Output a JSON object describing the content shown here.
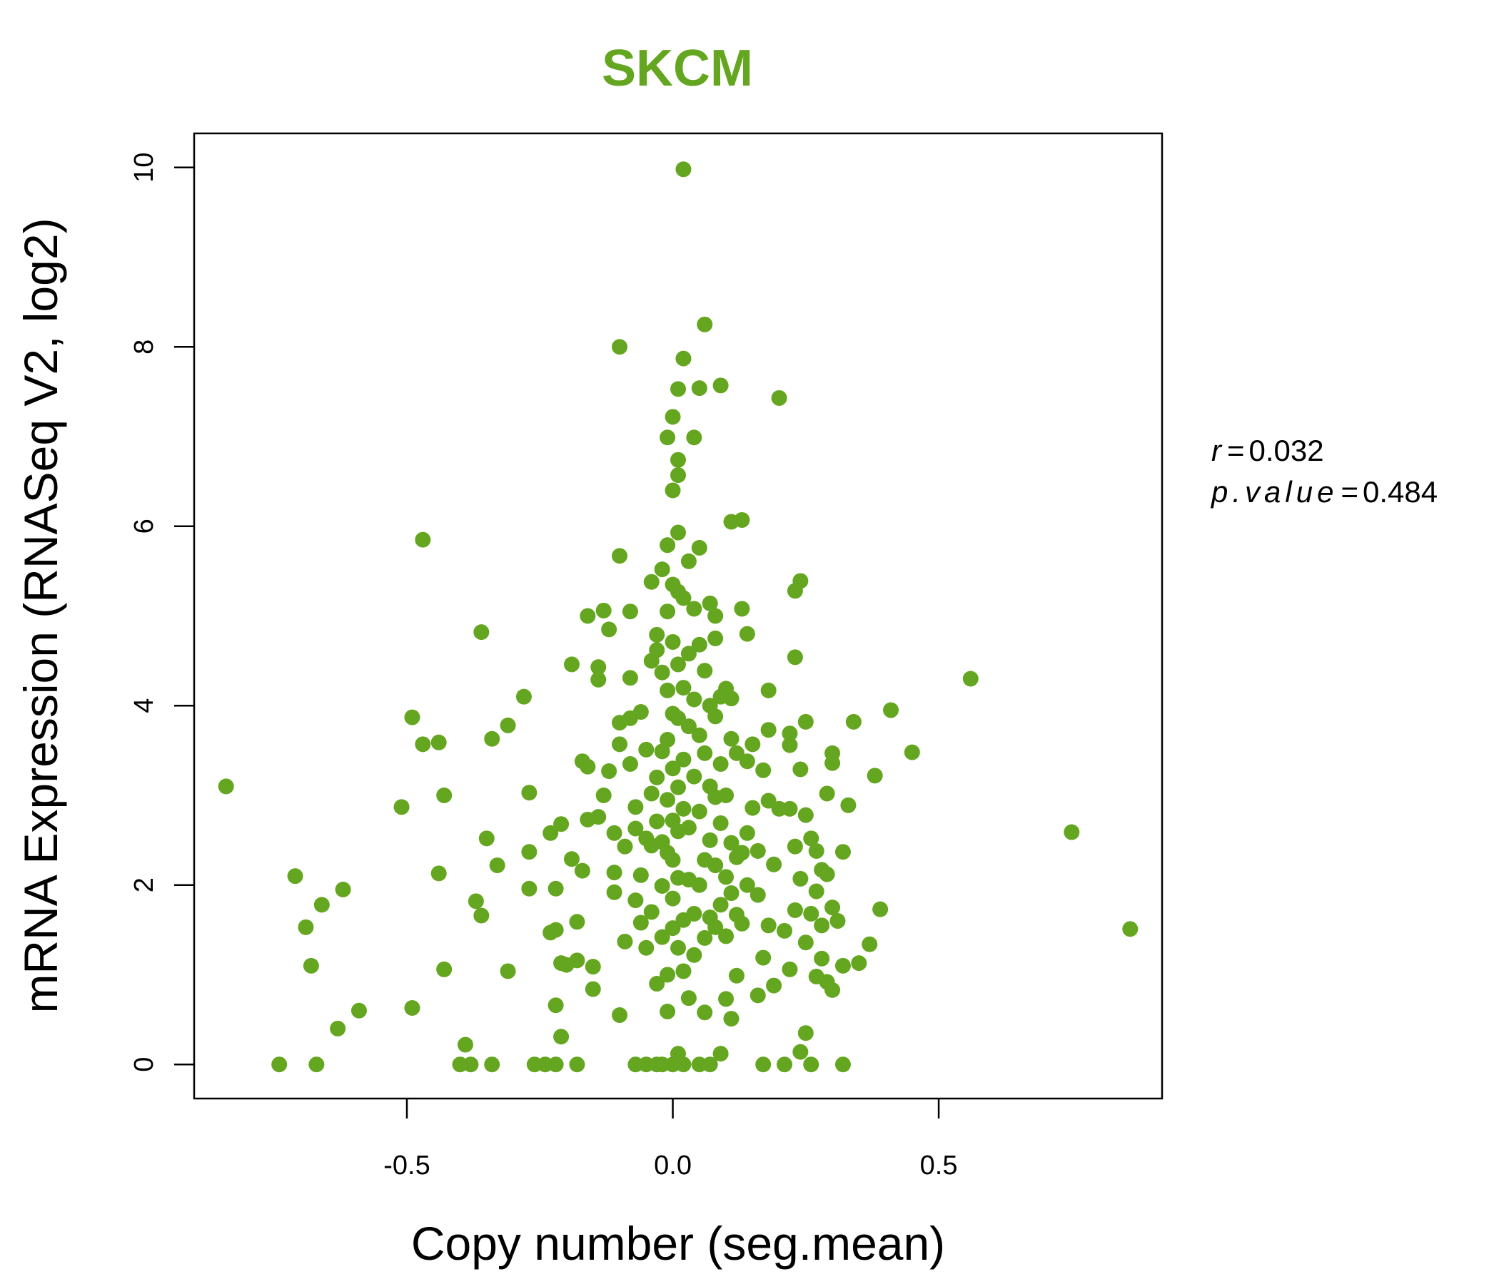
{
  "chart_data": {
    "type": "scatter",
    "title": "SKCM",
    "xlabel": "Copy number (seg.mean)",
    "ylabel": "mRNA Expression (RNASeq V2, log2)",
    "xlim": [
      -0.9,
      0.92
    ],
    "ylim": [
      -0.38,
      10.38
    ],
    "xticks": [
      -0.5,
      0.0,
      0.5
    ],
    "xtick_labels": [
      "-0.5",
      "0.0",
      "0.5"
    ],
    "yticks": [
      0,
      2,
      4,
      6,
      8,
      10
    ],
    "ytick_labels": [
      "0",
      "2",
      "4",
      "6",
      "8",
      "10"
    ],
    "grid": false,
    "legend": "none",
    "point_color": "#64A61F",
    "annotations": {
      "r_label": "r",
      "r_value": "0.032",
      "p_label": "p.value",
      "p_value": "0.484"
    },
    "points": [
      [
        -0.84,
        3.1
      ],
      [
        -0.74,
        0.0
      ],
      [
        -0.71,
        2.1
      ],
      [
        -0.69,
        1.53
      ],
      [
        -0.68,
        1.1
      ],
      [
        -0.67,
        0.0
      ],
      [
        -0.66,
        1.78
      ],
      [
        -0.63,
        0.4
      ],
      [
        -0.62,
        1.95
      ],
      [
        -0.59,
        0.6
      ],
      [
        -0.51,
        2.87
      ],
      [
        -0.49,
        3.87
      ],
      [
        -0.49,
        0.63
      ],
      [
        -0.47,
        5.85
      ],
      [
        -0.47,
        3.57
      ],
      [
        -0.44,
        3.59
      ],
      [
        -0.44,
        2.13
      ],
      [
        -0.43,
        3.0
      ],
      [
        -0.43,
        1.06
      ],
      [
        -0.4,
        0.0
      ],
      [
        -0.39,
        0.22
      ],
      [
        -0.38,
        0.0
      ],
      [
        -0.37,
        1.82
      ],
      [
        -0.36,
        4.82
      ],
      [
        -0.36,
        1.66
      ],
      [
        -0.35,
        2.52
      ],
      [
        -0.34,
        0.0
      ],
      [
        -0.34,
        3.63
      ],
      [
        -0.33,
        2.22
      ],
      [
        -0.31,
        3.78
      ],
      [
        -0.31,
        1.04
      ],
      [
        -0.28,
        4.1
      ],
      [
        -0.27,
        3.03
      ],
      [
        -0.27,
        2.37
      ],
      [
        -0.27,
        1.96
      ],
      [
        -0.26,
        0.0
      ],
      [
        -0.24,
        0.0
      ],
      [
        -0.23,
        2.58
      ],
      [
        -0.23,
        1.47
      ],
      [
        -0.22,
        0.0
      ],
      [
        -0.22,
        1.5
      ],
      [
        -0.22,
        1.96
      ],
      [
        -0.22,
        0.66
      ],
      [
        -0.21,
        0.31
      ],
      [
        -0.21,
        1.13
      ],
      [
        -0.21,
        2.68
      ],
      [
        -0.2,
        1.11
      ],
      [
        -0.19,
        4.46
      ],
      [
        -0.19,
        2.29
      ],
      [
        -0.18,
        1.16
      ],
      [
        -0.18,
        1.59
      ],
      [
        -0.18,
        0.0
      ],
      [
        -0.17,
        3.38
      ],
      [
        -0.17,
        2.16
      ],
      [
        -0.16,
        5.0
      ],
      [
        -0.16,
        3.32
      ],
      [
        -0.16,
        2.73
      ],
      [
        -0.15,
        1.09
      ],
      [
        -0.15,
        0.84
      ],
      [
        -0.14,
        4.43
      ],
      [
        -0.14,
        4.29
      ],
      [
        -0.14,
        2.76
      ],
      [
        -0.13,
        5.06
      ],
      [
        -0.13,
        3.0
      ],
      [
        -0.12,
        4.85
      ],
      [
        -0.12,
        3.27
      ],
      [
        -0.11,
        2.14
      ],
      [
        -0.11,
        2.58
      ],
      [
        -0.11,
        1.92
      ],
      [
        -0.1,
        5.67
      ],
      [
        -0.1,
        3.57
      ],
      [
        -0.1,
        3.81
      ],
      [
        -0.1,
        0.55
      ],
      [
        -0.1,
        8.0
      ],
      [
        -0.09,
        2.43
      ],
      [
        -0.09,
        1.37
      ],
      [
        -0.08,
        5.05
      ],
      [
        -0.08,
        4.31
      ],
      [
        -0.08,
        3.86
      ],
      [
        -0.08,
        3.35
      ],
      [
        -0.07,
        2.87
      ],
      [
        -0.07,
        1.83
      ],
      [
        -0.07,
        2.63
      ],
      [
        -0.07,
        0.0
      ],
      [
        -0.06,
        3.93
      ],
      [
        -0.06,
        2.11
      ],
      [
        -0.06,
        1.58
      ],
      [
        -0.05,
        3.51
      ],
      [
        -0.05,
        2.52
      ],
      [
        -0.05,
        1.3
      ],
      [
        -0.05,
        0.0
      ],
      [
        -0.04,
        5.38
      ],
      [
        -0.04,
        4.5
      ],
      [
        -0.04,
        3.02
      ],
      [
        -0.04,
        2.44
      ],
      [
        -0.04,
        1.7
      ],
      [
        -0.03,
        4.79
      ],
      [
        -0.03,
        4.62
      ],
      [
        -0.03,
        3.2
      ],
      [
        -0.03,
        2.71
      ],
      [
        -0.03,
        0.9
      ],
      [
        -0.03,
        0.0
      ],
      [
        -0.02,
        5.52
      ],
      [
        -0.02,
        4.37
      ],
      [
        -0.02,
        3.49
      ],
      [
        -0.02,
        2.48
      ],
      [
        -0.02,
        1.99
      ],
      [
        -0.02,
        1.42
      ],
      [
        -0.02,
        0.0
      ],
      [
        -0.01,
        6.99
      ],
      [
        -0.01,
        5.79
      ],
      [
        -0.01,
        5.05
      ],
      [
        -0.01,
        4.17
      ],
      [
        -0.01,
        3.62
      ],
      [
        -0.01,
        2.95
      ],
      [
        -0.01,
        2.36
      ],
      [
        -0.01,
        1.0
      ],
      [
        -0.01,
        0.59
      ],
      [
        0.0,
        7.22
      ],
      [
        0.0,
        6.4
      ],
      [
        0.0,
        5.35
      ],
      [
        0.0,
        4.71
      ],
      [
        0.0,
        3.91
      ],
      [
        0.0,
        3.3
      ],
      [
        0.0,
        2.72
      ],
      [
        0.0,
        2.28
      ],
      [
        0.0,
        1.85
      ],
      [
        0.0,
        1.52
      ],
      [
        0.0,
        0.0
      ],
      [
        0.01,
        6.74
      ],
      [
        0.01,
        5.93
      ],
      [
        0.01,
        5.27
      ],
      [
        0.01,
        4.46
      ],
      [
        0.01,
        3.86
      ],
      [
        0.01,
        3.09
      ],
      [
        0.01,
        2.6
      ],
      [
        0.01,
        2.08
      ],
      [
        0.01,
        1.3
      ],
      [
        0.01,
        0.12
      ],
      [
        0.01,
        7.53
      ],
      [
        0.01,
        6.57
      ],
      [
        0.02,
        7.87
      ],
      [
        0.02,
        5.2
      ],
      [
        0.02,
        4.2
      ],
      [
        0.02,
        3.4
      ],
      [
        0.02,
        2.85
      ],
      [
        0.02,
        1.61
      ],
      [
        0.02,
        1.04
      ],
      [
        0.02,
        0.0
      ],
      [
        0.02,
        9.98
      ],
      [
        0.03,
        5.61
      ],
      [
        0.03,
        4.58
      ],
      [
        0.03,
        3.77
      ],
      [
        0.03,
        2.64
      ],
      [
        0.03,
        2.06
      ],
      [
        0.03,
        0.74
      ],
      [
        0.04,
        6.99
      ],
      [
        0.04,
        5.08
      ],
      [
        0.04,
        4.07
      ],
      [
        0.04,
        3.21
      ],
      [
        0.04,
        1.68
      ],
      [
        0.04,
        1.22
      ],
      [
        0.05,
        7.54
      ],
      [
        0.05,
        5.76
      ],
      [
        0.05,
        4.68
      ],
      [
        0.05,
        3.67
      ],
      [
        0.05,
        2.82
      ],
      [
        0.05,
        2.0
      ],
      [
        0.05,
        0.0
      ],
      [
        0.06,
        8.25
      ],
      [
        0.06,
        4.39
      ],
      [
        0.06,
        3.47
      ],
      [
        0.06,
        2.28
      ],
      [
        0.06,
        1.41
      ],
      [
        0.06,
        0.58
      ],
      [
        0.07,
        5.14
      ],
      [
        0.07,
        4.0
      ],
      [
        0.07,
        3.1
      ],
      [
        0.07,
        2.5
      ],
      [
        0.07,
        1.64
      ],
      [
        0.07,
        0.0
      ],
      [
        0.08,
        5.0
      ],
      [
        0.08,
        4.75
      ],
      [
        0.08,
        3.88
      ],
      [
        0.08,
        2.98
      ],
      [
        0.08,
        2.22
      ],
      [
        0.08,
        1.53
      ],
      [
        0.09,
        7.57
      ],
      [
        0.09,
        4.1
      ],
      [
        0.09,
        3.35
      ],
      [
        0.09,
        2.69
      ],
      [
        0.09,
        1.78
      ],
      [
        0.09,
        0.12
      ],
      [
        0.1,
        4.19
      ],
      [
        0.1,
        3.0
      ],
      [
        0.1,
        2.09
      ],
      [
        0.1,
        1.43
      ],
      [
        0.1,
        0.73
      ],
      [
        0.11,
        6.05
      ],
      [
        0.11,
        4.08
      ],
      [
        0.11,
        3.63
      ],
      [
        0.11,
        2.47
      ],
      [
        0.11,
        1.91
      ],
      [
        0.11,
        0.51
      ],
      [
        0.12,
        3.47
      ],
      [
        0.12,
        2.31
      ],
      [
        0.12,
        1.67
      ],
      [
        0.12,
        0.99
      ],
      [
        0.13,
        6.07
      ],
      [
        0.13,
        5.08
      ],
      [
        0.13,
        2.36
      ],
      [
        0.13,
        1.57
      ],
      [
        0.14,
        4.8
      ],
      [
        0.14,
        3.38
      ],
      [
        0.14,
        2.58
      ],
      [
        0.14,
        2.0
      ],
      [
        0.15,
        3.57
      ],
      [
        0.15,
        2.86
      ],
      [
        0.16,
        2.38
      ],
      [
        0.16,
        1.89
      ],
      [
        0.16,
        0.77
      ],
      [
        0.17,
        3.28
      ],
      [
        0.17,
        1.19
      ],
      [
        0.17,
        0.0
      ],
      [
        0.18,
        4.17
      ],
      [
        0.18,
        3.73
      ],
      [
        0.18,
        2.94
      ],
      [
        0.18,
        1.55
      ],
      [
        0.19,
        0.88
      ],
      [
        0.19,
        2.23
      ],
      [
        0.2,
        7.43
      ],
      [
        0.2,
        2.85
      ],
      [
        0.21,
        1.49
      ],
      [
        0.21,
        0.0
      ],
      [
        0.22,
        3.69
      ],
      [
        0.22,
        3.56
      ],
      [
        0.22,
        2.85
      ],
      [
        0.22,
        1.06
      ],
      [
        0.23,
        5.28
      ],
      [
        0.23,
        4.54
      ],
      [
        0.23,
        2.43
      ],
      [
        0.23,
        1.72
      ],
      [
        0.24,
        5.39
      ],
      [
        0.24,
        3.29
      ],
      [
        0.24,
        2.07
      ],
      [
        0.24,
        0.14
      ],
      [
        0.25,
        3.82
      ],
      [
        0.25,
        2.78
      ],
      [
        0.25,
        1.36
      ],
      [
        0.25,
        0.35
      ],
      [
        0.26,
        2.52
      ],
      [
        0.26,
        1.68
      ],
      [
        0.26,
        0.0
      ],
      [
        0.27,
        2.38
      ],
      [
        0.27,
        1.93
      ],
      [
        0.27,
        0.98
      ],
      [
        0.28,
        2.17
      ],
      [
        0.28,
        1.55
      ],
      [
        0.28,
        1.18
      ],
      [
        0.29,
        3.02
      ],
      [
        0.29,
        2.12
      ],
      [
        0.29,
        0.92
      ],
      [
        0.3,
        3.47
      ],
      [
        0.3,
        3.36
      ],
      [
        0.3,
        1.75
      ],
      [
        0.3,
        0.83
      ],
      [
        0.31,
        1.6
      ],
      [
        0.32,
        2.37
      ],
      [
        0.32,
        1.1
      ],
      [
        0.32,
        0.0
      ],
      [
        0.33,
        2.89
      ],
      [
        0.34,
        3.82
      ],
      [
        0.35,
        1.13
      ],
      [
        0.37,
        1.34
      ],
      [
        0.38,
        3.22
      ],
      [
        0.39,
        1.73
      ],
      [
        0.41,
        3.95
      ],
      [
        0.45,
        3.48
      ],
      [
        0.56,
        4.3
      ],
      [
        0.75,
        2.59
      ],
      [
        0.86,
        1.51
      ]
    ]
  }
}
